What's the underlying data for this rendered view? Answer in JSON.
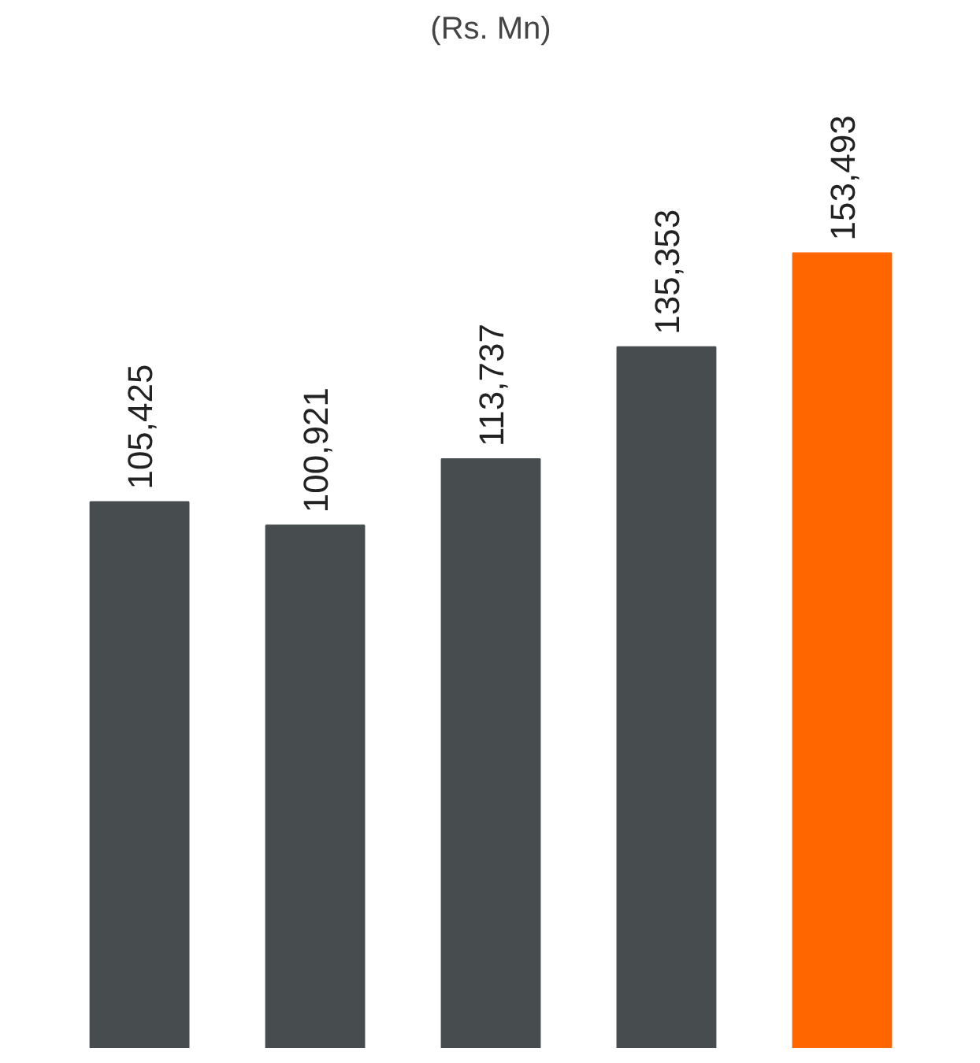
{
  "chart_data": {
    "type": "bar",
    "title": "(Rs. Mn)",
    "categories": [
      null,
      null,
      null,
      null,
      null
    ],
    "values": [
      105425,
      100921,
      113737,
      135353,
      153493
    ],
    "value_labels": [
      "105,425",
      "100,921",
      "113,737",
      "135,353",
      "153,493"
    ],
    "colors": [
      "#474d4f",
      "#474d4f",
      "#474d4f",
      "#474d4f",
      "#ff6600"
    ],
    "grid": false
  }
}
